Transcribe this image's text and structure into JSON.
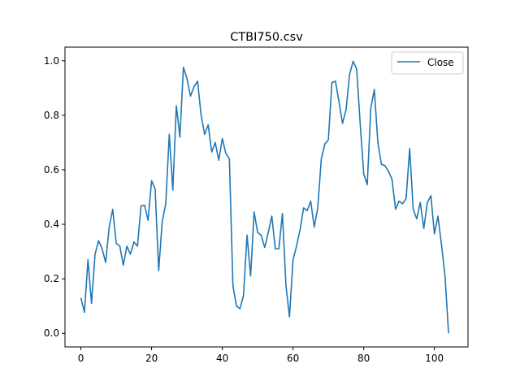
{
  "chart_data": {
    "type": "line",
    "title": "CTBI750.csv",
    "xlabel": "",
    "ylabel": "",
    "xlim": [
      -4.5,
      109.5
    ],
    "ylim": [
      -0.05,
      1.05
    ],
    "xticks": [
      0,
      20,
      40,
      60,
      80,
      100
    ],
    "yticks": [
      0.0,
      0.2,
      0.4,
      0.6,
      0.8,
      1.0
    ],
    "xtick_labels": [
      "0",
      "20",
      "40",
      "60",
      "80",
      "100"
    ],
    "ytick_labels": [
      "0.0",
      "0.2",
      "0.4",
      "0.6",
      "0.8",
      "1.0"
    ],
    "grid": false,
    "legend_position": "upper right",
    "series": [
      {
        "name": "Close",
        "color": "#1f77b4",
        "x": [
          0,
          1,
          2,
          3,
          4,
          5,
          6,
          7,
          8,
          9,
          10,
          11,
          12,
          13,
          14,
          15,
          16,
          17,
          18,
          19,
          20,
          21,
          22,
          23,
          24,
          25,
          26,
          27,
          28,
          29,
          30,
          31,
          32,
          33,
          34,
          35,
          36,
          37,
          38,
          39,
          40,
          41,
          42,
          43,
          44,
          45,
          46,
          47,
          48,
          49,
          50,
          51,
          52,
          53,
          54,
          55,
          56,
          57,
          58,
          59,
          60,
          61,
          62,
          63,
          64,
          65,
          66,
          67,
          68,
          69,
          70,
          71,
          72,
          73,
          74,
          75,
          76,
          77,
          78,
          79,
          80,
          81,
          82,
          83,
          84,
          85,
          86,
          87,
          88,
          89,
          90,
          91,
          92,
          93,
          94,
          95,
          96,
          97,
          98,
          99,
          100,
          101,
          102,
          103,
          104
        ],
        "values": [
          0.13,
          0.077,
          0.27,
          0.11,
          0.29,
          0.34,
          0.31,
          0.26,
          0.39,
          0.455,
          0.33,
          0.32,
          0.25,
          0.32,
          0.29,
          0.335,
          0.32,
          0.467,
          0.47,
          0.415,
          0.56,
          0.53,
          0.23,
          0.41,
          0.475,
          0.73,
          0.525,
          0.835,
          0.72,
          0.976,
          0.935,
          0.87,
          0.905,
          0.925,
          0.8,
          0.73,
          0.765,
          0.665,
          0.7,
          0.635,
          0.715,
          0.66,
          0.64,
          0.175,
          0.1,
          0.09,
          0.14,
          0.36,
          0.21,
          0.445,
          0.37,
          0.36,
          0.315,
          0.37,
          0.43,
          0.31,
          0.31,
          0.44,
          0.175,
          0.06,
          0.27,
          0.32,
          0.38,
          0.46,
          0.45,
          0.485,
          0.39,
          0.46,
          0.64,
          0.695,
          0.71,
          0.92,
          0.925,
          0.85,
          0.77,
          0.82,
          0.95,
          0.998,
          0.97,
          0.77,
          0.585,
          0.545,
          0.825,
          0.895,
          0.7,
          0.62,
          0.615,
          0.595,
          0.565,
          0.455,
          0.485,
          0.475,
          0.495,
          0.678,
          0.455,
          0.42,
          0.48,
          0.385,
          0.48,
          0.505,
          0.365,
          0.43,
          0.325,
          0.21,
          0.0
        ]
      }
    ]
  }
}
